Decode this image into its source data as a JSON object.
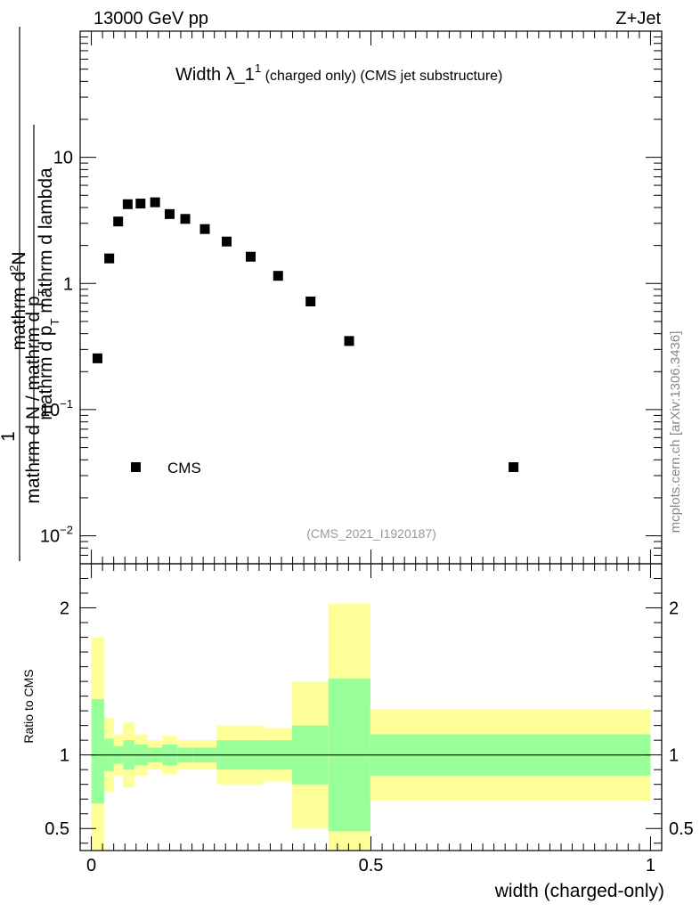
{
  "header": {
    "energy_label": "13000 GeV pp",
    "process_label": "Z+Jet",
    "plot_title_main": "Width λ_1",
    "plot_title_sup": "1",
    "plot_title_rest": " (charged only) (CMS jet substructure)",
    "analysis_id": "(CMS_2021_I1920187)",
    "side_credit": "mcplots.cern.ch [arXiv:1306.3436]"
  },
  "chart_data": [
    {
      "type": "scatter",
      "name": "main-distribution",
      "yscale": "log",
      "ylim": [
        0.006,
        100
      ],
      "xlim": [
        -0.02,
        1.02
      ],
      "ylabel_fraction_numerator_top": "1",
      "ylabel_fraction_denominator_top": "mathrm d N / mathrm d p",
      "ylabel_sub_T": "T",
      "ylabel_numerator": "mathrm d",
      "ylabel_numerator_sup": "2",
      "ylabel_numerator_end": "N",
      "ylabel_denominator": "mathrm d p",
      "ylabel_denominator_end": " mathrm d lambda",
      "y_ticks": [
        {
          "value": 10,
          "label": "10"
        },
        {
          "value": 1,
          "label": "1"
        },
        {
          "value": 0.1,
          "label_base": "10",
          "label_exp": "−1"
        },
        {
          "value": 0.01,
          "label_base": "10",
          "label_exp": "−2"
        }
      ],
      "legend": {
        "label": "CMS",
        "placement": "lower-left"
      },
      "series": [
        {
          "name": "CMS",
          "points": [
            {
              "x": 0.011,
              "y": 0.255
            },
            {
              "x": 0.032,
              "y": 1.58
            },
            {
              "x": 0.048,
              "y": 3.1
            },
            {
              "x": 0.065,
              "y": 4.25
            },
            {
              "x": 0.088,
              "y": 4.3
            },
            {
              "x": 0.114,
              "y": 4.4
            },
            {
              "x": 0.14,
              "y": 3.55
            },
            {
              "x": 0.168,
              "y": 3.25
            },
            {
              "x": 0.203,
              "y": 2.7
            },
            {
              "x": 0.242,
              "y": 2.15
            },
            {
              "x": 0.285,
              "y": 1.63
            },
            {
              "x": 0.334,
              "y": 1.15
            },
            {
              "x": 0.392,
              "y": 0.72
            },
            {
              "x": 0.461,
              "y": 0.35
            },
            {
              "x": 0.755,
              "y": 0.035
            }
          ]
        }
      ]
    },
    {
      "type": "area",
      "name": "ratio-panel",
      "ylabel": "Ratio to CMS",
      "xlabel": "width (charged-only)",
      "ylim": [
        0.35,
        2.3
      ],
      "xlim": [
        -0.02,
        1.02
      ],
      "y_ticks": [
        {
          "value": 2,
          "label": "2"
        },
        {
          "value": 1,
          "label": "1"
        },
        {
          "value": 0.5,
          "label": "0.5"
        }
      ],
      "x_ticks": [
        {
          "value": 0,
          "label": "0"
        },
        {
          "value": 0.5,
          "label": "0.5"
        },
        {
          "value": 1,
          "label": "1"
        }
      ],
      "reference_line": 1,
      "bands": [
        {
          "x0": 0.0,
          "x1": 0.023,
          "inner_lo": 0.67,
          "inner_hi": 1.38,
          "outer_lo": 0.3,
          "outer_hi": 1.8
        },
        {
          "x0": 0.023,
          "x1": 0.04,
          "inner_lo": 0.89,
          "inner_hi": 1.11,
          "outer_lo": 0.75,
          "outer_hi": 1.25
        },
        {
          "x0": 0.04,
          "x1": 0.057,
          "inner_lo": 0.94,
          "inner_hi": 1.06,
          "outer_lo": 0.86,
          "outer_hi": 1.14
        },
        {
          "x0": 0.057,
          "x1": 0.077,
          "inner_lo": 0.9,
          "inner_hi": 1.1,
          "outer_lo": 0.78,
          "outer_hi": 1.22
        },
        {
          "x0": 0.077,
          "x1": 0.101,
          "inner_lo": 0.93,
          "inner_hi": 1.07,
          "outer_lo": 0.86,
          "outer_hi": 1.14
        },
        {
          "x0": 0.101,
          "x1": 0.127,
          "inner_lo": 0.95,
          "inner_hi": 1.05,
          "outer_lo": 0.9,
          "outer_hi": 1.1
        },
        {
          "x0": 0.127,
          "x1": 0.154,
          "inner_lo": 0.93,
          "inner_hi": 1.07,
          "outer_lo": 0.87,
          "outer_hi": 1.13
        },
        {
          "x0": 0.154,
          "x1": 0.182,
          "inner_lo": 0.95,
          "inner_hi": 1.05,
          "outer_lo": 0.9,
          "outer_hi": 1.1
        },
        {
          "x0": 0.182,
          "x1": 0.224,
          "inner_lo": 0.95,
          "inner_hi": 1.05,
          "outer_lo": 0.9,
          "outer_hi": 1.1
        },
        {
          "x0": 0.224,
          "x1": 0.261,
          "inner_lo": 0.9,
          "inner_hi": 1.1,
          "outer_lo": 0.8,
          "outer_hi": 1.2
        },
        {
          "x0": 0.261,
          "x1": 0.309,
          "inner_lo": 0.9,
          "inner_hi": 1.1,
          "outer_lo": 0.8,
          "outer_hi": 1.2
        },
        {
          "x0": 0.309,
          "x1": 0.359,
          "inner_lo": 0.9,
          "inner_hi": 1.1,
          "outer_lo": 0.82,
          "outer_hi": 1.18
        },
        {
          "x0": 0.359,
          "x1": 0.424,
          "inner_lo": 0.8,
          "inner_hi": 1.2,
          "outer_lo": 0.5,
          "outer_hi": 1.5
        },
        {
          "x0": 0.424,
          "x1": 0.499,
          "inner_lo": 0.48,
          "inner_hi": 1.52,
          "outer_lo": 0.22,
          "outer_hi": 2.03
        },
        {
          "x0": 0.499,
          "x1": 1.0,
          "inner_lo": 0.86,
          "inner_hi": 1.14,
          "outer_lo": 0.69,
          "outer_hi": 1.31
        }
      ]
    }
  ],
  "colors": {
    "inner_band": "#99ff99",
    "outer_band": "#ffff99",
    "marker": "#000000",
    "credit": "#888888",
    "analysis": "#999999"
  }
}
